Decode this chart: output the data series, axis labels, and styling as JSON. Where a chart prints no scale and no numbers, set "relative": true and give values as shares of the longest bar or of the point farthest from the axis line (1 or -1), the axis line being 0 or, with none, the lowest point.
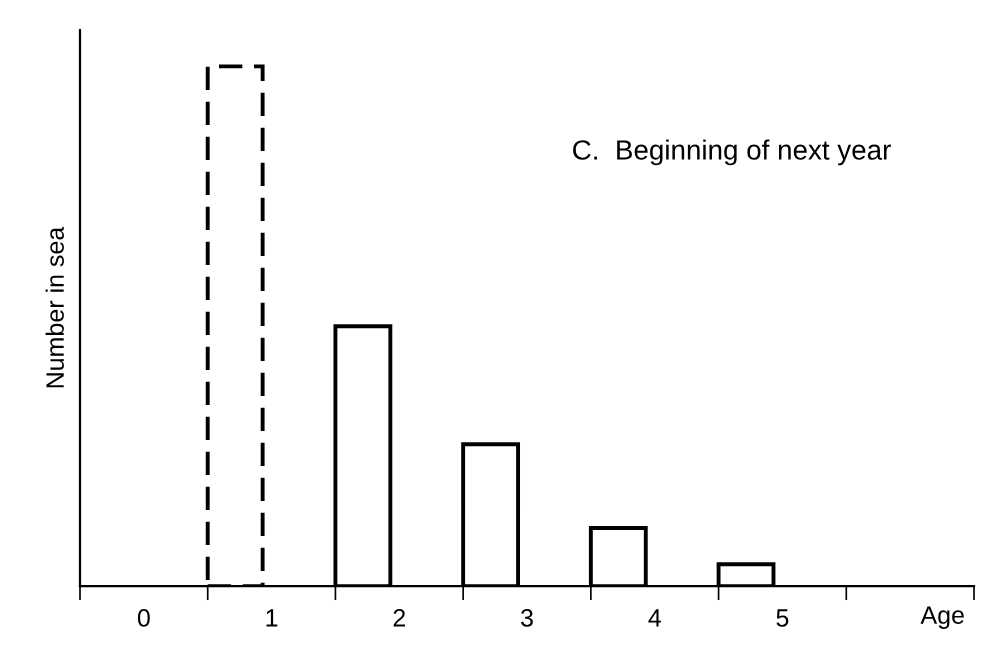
{
  "chart_data": {
    "type": "bar",
    "relative": true,
    "xlabel": "Age",
    "ylabel": "Number in sea",
    "annotations": [
      "C.  Beginning of next year"
    ],
    "categories": [
      "0",
      "1",
      "2",
      "3",
      "4",
      "5"
    ],
    "series": [
      {
        "color": "#000000",
        "line_style": "dashed",
        "values": [
          null,
          1,
          null,
          null,
          null,
          null
        ]
      },
      {
        "color": "#000000",
        "line_style": "solid",
        "values": [
          null,
          null,
          0.5,
          0.273,
          0.112,
          0.042
        ]
      }
    ],
    "grid": false,
    "legend": false
  }
}
